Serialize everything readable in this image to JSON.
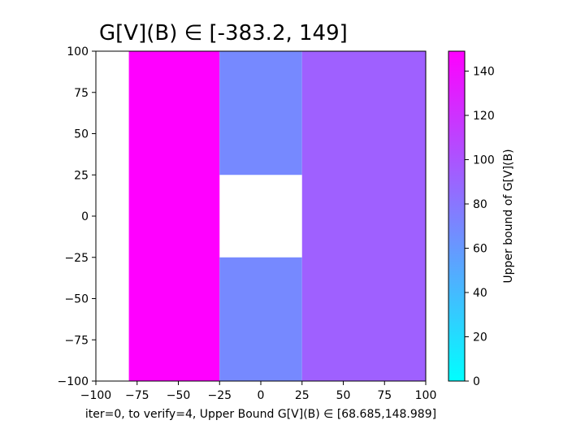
{
  "chart_data": {
    "type": "heatmap",
    "title": "G[V](B) ∈ [-383.2, 149]",
    "xlabel": "iter=0, to verify=4, Upper Bound G[V](B) ∈ [68.685,148.989]",
    "ylabel": "",
    "xlim": [
      -100,
      100
    ],
    "ylim": [
      -100,
      100
    ],
    "x_ticks": [
      "−100",
      "−75",
      "−50",
      "−25",
      "0",
      "25",
      "50",
      "75",
      "100"
    ],
    "y_ticks": [
      "−100",
      "−75",
      "−50",
      "−25",
      "0",
      "25",
      "50",
      "75",
      "100"
    ],
    "cells": [
      {
        "x": [
          -80,
          -25
        ],
        "y": [
          -100,
          100
        ],
        "value": 149.0
      },
      {
        "x": [
          -25,
          25
        ],
        "y": [
          25,
          100
        ],
        "value": 68.7
      },
      {
        "x": [
          -25,
          25
        ],
        "y": [
          -100,
          -25
        ],
        "value": 68.7
      },
      {
        "x": [
          25,
          100
        ],
        "y": [
          -100,
          100
        ],
        "value": 93.0
      }
    ],
    "colorbar": {
      "label": "Upper bound of G[V](B)",
      "range": [
        0,
        149
      ],
      "colormap": "cool",
      "ticks": [
        "0",
        "20",
        "40",
        "60",
        "80",
        "100",
        "120",
        "140"
      ],
      "colors": [
        "#00ffff",
        "#ff00ff"
      ]
    },
    "grid": false
  }
}
